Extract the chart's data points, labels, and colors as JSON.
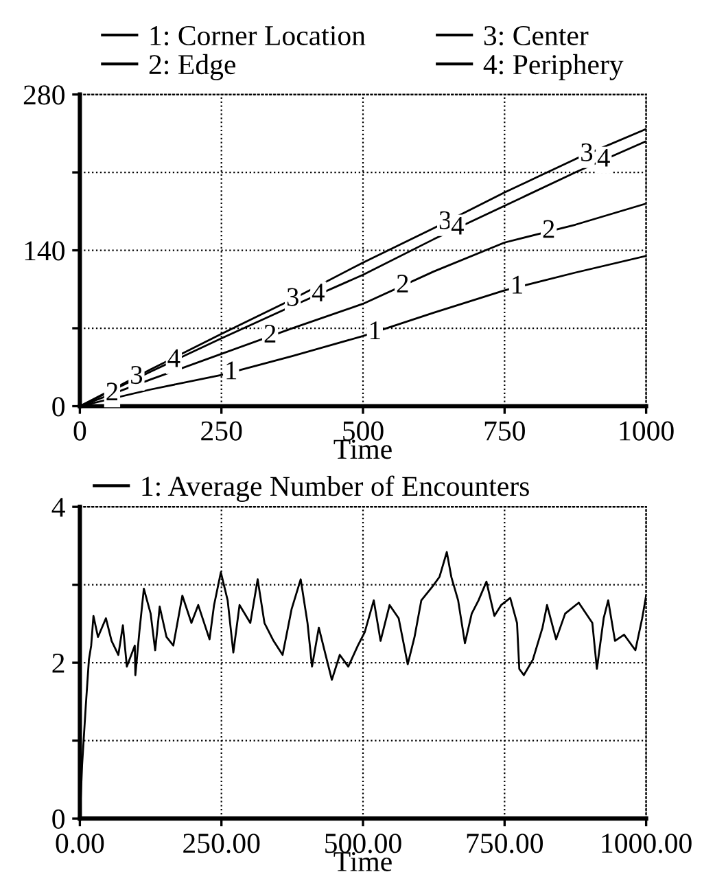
{
  "chart_data": [
    {
      "type": "line",
      "xlabel": "Time",
      "xlim": [
        0,
        1000
      ],
      "xticks": [
        0,
        250,
        500,
        750,
        1000
      ],
      "ylim": [
        0,
        280
      ],
      "yticks": [
        0,
        {
          "value": 70,
          "label": null
        },
        140,
        {
          "value": 210,
          "label": null
        },
        280
      ],
      "grid": true,
      "legend": "top",
      "marker": "none",
      "line_style": "solid",
      "x": [
        0,
        125,
        250,
        375,
        500,
        625,
        750,
        875,
        1000
      ],
      "series": [
        {
          "name": "1: Corner Location",
          "color": "#000000",
          "values": [
            0,
            15,
            28,
            45,
            63,
            84,
            104,
            120,
            135
          ]
        },
        {
          "name": "2: Edge",
          "color": "#000000",
          "values": [
            0,
            24,
            47,
            70,
            92,
            121,
            147,
            163,
            182
          ]
        },
        {
          "name": "3: Center",
          "color": "#000000",
          "values": [
            0,
            33,
            65,
            96,
            129,
            160,
            192,
            222,
            249
          ]
        },
        {
          "name": "4: Periphery",
          "color": "#000000",
          "values": [
            0,
            31,
            61,
            90,
            118,
            150,
            180,
            210,
            238
          ]
        }
      ],
      "annotations": [
        {
          "text": "1",
          "x": 267,
          "y": 30
        },
        {
          "text": "1",
          "x": 521,
          "y": 66
        },
        {
          "text": "1",
          "x": 772,
          "y": 107
        },
        {
          "text": "2",
          "x": 57,
          "y": 11
        },
        {
          "text": "2",
          "x": 336,
          "y": 63
        },
        {
          "text": "2",
          "x": 570,
          "y": 108
        },
        {
          "text": "2",
          "x": 828,
          "y": 157
        },
        {
          "text": "3",
          "x": 100,
          "y": 26
        },
        {
          "text": "3",
          "x": 376,
          "y": 96
        },
        {
          "text": "3",
          "x": 645,
          "y": 165
        },
        {
          "text": "3",
          "x": 895,
          "y": 226
        },
        {
          "text": "4",
          "x": 166,
          "y": 41
        },
        {
          "text": "4",
          "x": 421,
          "y": 100
        },
        {
          "text": "4",
          "x": 667,
          "y": 160
        },
        {
          "text": "4",
          "x": 925,
          "y": 221
        }
      ]
    },
    {
      "type": "line",
      "xlabel": "Time",
      "xlim": [
        0,
        1000
      ],
      "xticks": [
        {
          "value": 0,
          "label": "0.00"
        },
        {
          "value": 250,
          "label": "250.00"
        },
        {
          "value": 500,
          "label": "500.00"
        },
        {
          "value": 750,
          "label": "750.00"
        },
        {
          "value": 1000,
          "label": "1000.00"
        }
      ],
      "ylim": [
        0,
        4
      ],
      "yticks": [
        0,
        {
          "value": 1,
          "label": null
        },
        2,
        {
          "value": 3,
          "label": null
        },
        4
      ],
      "grid": true,
      "legend": "top left",
      "marker": "none",
      "line_style": "solid",
      "x": [
        0,
        4,
        10.5,
        16,
        20,
        24,
        32,
        46,
        56,
        68,
        76,
        83,
        97,
        98,
        105,
        113,
        125,
        133,
        141,
        153,
        165,
        181,
        197,
        209,
        229,
        237,
        249,
        261,
        271,
        282,
        301,
        314,
        326,
        342,
        358,
        374,
        390,
        402,
        410,
        422,
        434,
        445,
        459,
        474,
        491,
        503,
        519,
        531,
        547,
        563,
        579,
        591,
        603,
        623,
        635,
        648,
        656,
        668,
        680,
        692,
        704,
        718,
        732,
        744,
        760,
        772,
        776,
        784,
        800,
        817,
        825,
        841,
        857,
        881,
        905,
        913,
        925,
        933,
        945,
        961,
        981,
        993,
        1000
      ],
      "series": [
        {
          "name": "1: Average Number of Encounters",
          "color": "#000000",
          "values": [
            0,
            0.69,
            1.45,
            2.04,
            2.22,
            2.6,
            2.33,
            2.57,
            2.28,
            2.1,
            2.48,
            1.95,
            2.22,
            1.84,
            2.39,
            2.95,
            2.63,
            2.16,
            2.72,
            2.33,
            2.22,
            2.86,
            2.51,
            2.74,
            2.3,
            2.74,
            3.16,
            2.8,
            2.13,
            2.74,
            2.51,
            3.07,
            2.51,
            2.28,
            2.1,
            2.69,
            3.07,
            2.51,
            1.95,
            2.45,
            2.1,
            1.78,
            2.1,
            1.95,
            2.22,
            2.39,
            2.8,
            2.28,
            2.74,
            2.57,
            1.98,
            2.33,
            2.8,
            2.98,
            3.1,
            3.42,
            3.1,
            2.8,
            2.25,
            2.63,
            2.8,
            3.04,
            2.6,
            2.74,
            2.83,
            2.51,
            1.92,
            1.84,
            2.04,
            2.45,
            2.74,
            2.3,
            2.63,
            2.77,
            2.51,
            1.92,
            2.57,
            2.8,
            2.28,
            2.36,
            2.16,
            2.57,
            2.86
          ]
        }
      ]
    }
  ]
}
